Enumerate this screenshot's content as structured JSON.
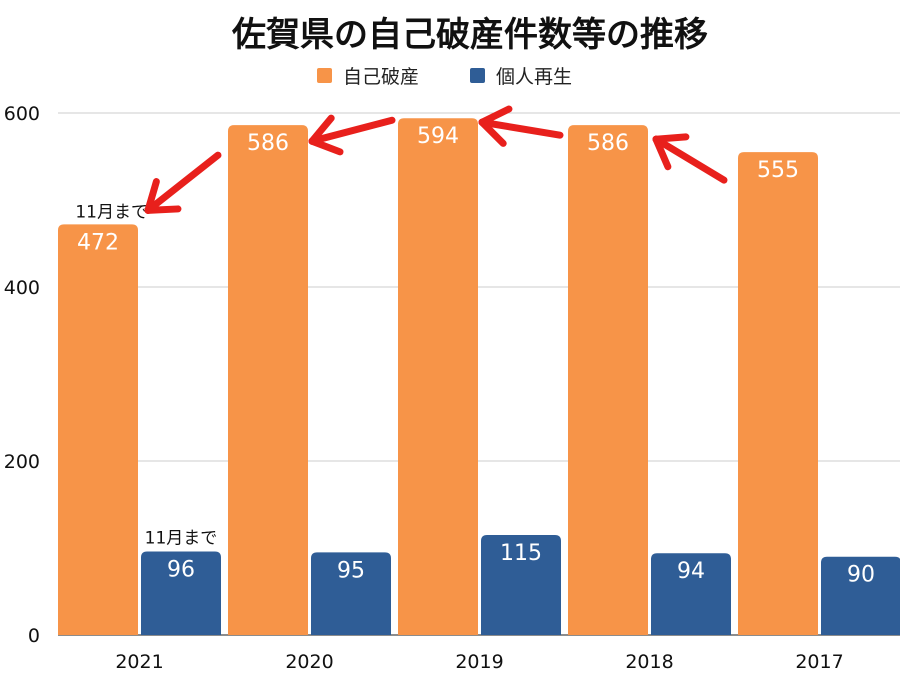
{
  "chart_data": {
    "type": "bar",
    "title": "佐賀県の自己破産件数等の推移",
    "categories": [
      "2021",
      "2020",
      "2019",
      "2018",
      "2017"
    ],
    "series": [
      {
        "name": "自己破産",
        "values": [
          472,
          586,
          594,
          586,
          555
        ],
        "color": "#F79448"
      },
      {
        "name": "個人再生",
        "values": [
          96,
          95,
          115,
          94,
          90
        ],
        "color": "#2F5D96"
      }
    ],
    "ylim": [
      0,
      600
    ],
    "yticks": [
      0,
      200,
      400,
      600
    ],
    "grid": true,
    "legend": "top-center",
    "annotations": [
      {
        "text": "11月まで",
        "category": "2021",
        "series": "自己破産"
      },
      {
        "text": "11月まで",
        "category": "2021",
        "series": "個人再生"
      }
    ],
    "arrow_color": "#E8201C"
  }
}
